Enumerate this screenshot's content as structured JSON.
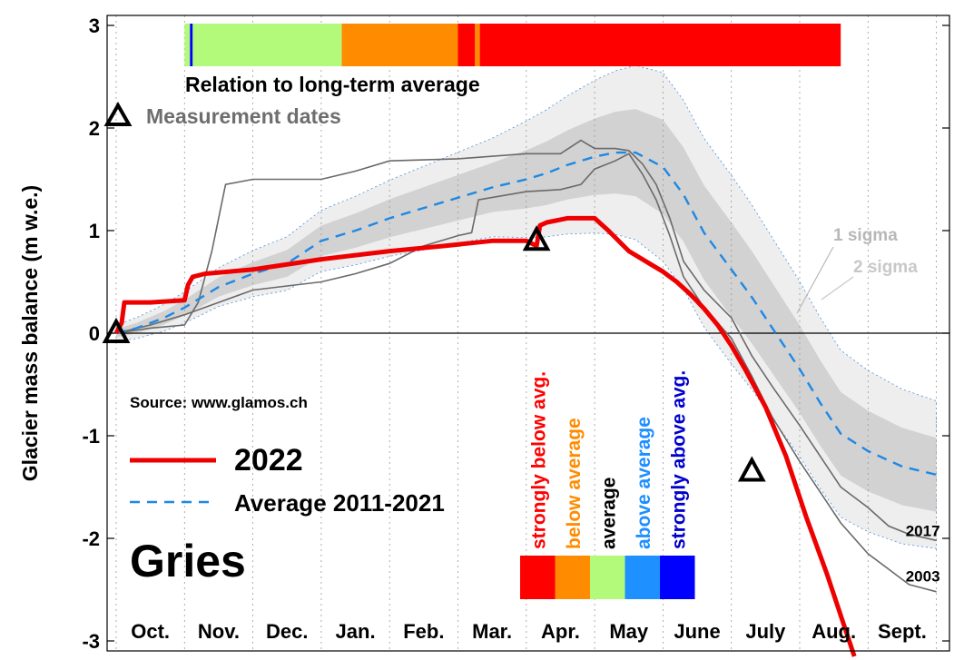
{
  "chart_data": {
    "type": "line",
    "title": "Gries",
    "ylabel": "Glacier mass balance (m w.e.)",
    "xlabel": "",
    "ylim": [
      -3,
      3
    ],
    "yticks": [
      3,
      2,
      1,
      0,
      -1,
      -2,
      -3
    ],
    "months": [
      "Oct.",
      "Nov.",
      "Dec.",
      "Jan.",
      "Feb.",
      "Mar.",
      "Apr.",
      "May",
      "June",
      "July",
      "Aug.",
      "Sept."
    ],
    "grid": "vertical dotted lines at month boundaries",
    "source": "Source: www.glamos.ch",
    "legend": [
      {
        "label": "2022",
        "color": "#ee0000",
        "style": "solid"
      },
      {
        "label": "Average 2011-2021",
        "color": "#1e88e5",
        "style": "dashed"
      }
    ],
    "band_labels": {
      "one_sigma": "1 sigma",
      "two_sigma": "2 sigma"
    },
    "relation_bar_title": "Relation to long-term average",
    "measurement_label": "Measurement dates",
    "relation_bar": [
      {
        "from": 1.0,
        "to": 1.08,
        "cls": "average"
      },
      {
        "from": 1.08,
        "to": 1.12,
        "cls": "strongly above avg."
      },
      {
        "from": 1.12,
        "to": 3.3,
        "cls": "average"
      },
      {
        "from": 3.3,
        "to": 5.0,
        "cls": "below average"
      },
      {
        "from": 5.0,
        "to": 5.25,
        "cls": "strongly below avg."
      },
      {
        "from": 5.25,
        "to": 5.32,
        "cls": "below average"
      },
      {
        "from": 5.32,
        "to": 10.6,
        "cls": "strongly below avg."
      }
    ],
    "categories_legend": [
      {
        "label": "strongly below avg.",
        "color": "#ff0000"
      },
      {
        "label": "below average",
        "color": "#ff8c00"
      },
      {
        "label": "average",
        "color": "#000000",
        "swatch": "#b3f97a"
      },
      {
        "label": "above average",
        "color": "#1e8fff",
        "swatch": "#1e90ff"
      },
      {
        "label": "strongly above avg.",
        "color": "#0000cc",
        "swatch": "#0000ff"
      }
    ],
    "series": [
      {
        "name": "Average 2011-2021",
        "x": [
          0.0,
          0.3,
          0.7,
          1.0,
          1.5,
          2.0,
          2.5,
          3.0,
          3.5,
          4.0,
          4.5,
          5.0,
          5.5,
          6.0,
          6.3,
          6.6,
          7.0,
          7.3,
          7.6,
          8.0,
          8.3,
          8.6,
          9.0,
          9.3,
          9.6,
          10.0,
          10.3,
          10.6,
          11.0,
          11.5,
          12.0
        ],
        "y": [
          0.0,
          0.05,
          0.15,
          0.25,
          0.45,
          0.58,
          0.68,
          0.9,
          1.0,
          1.12,
          1.22,
          1.32,
          1.42,
          1.5,
          1.56,
          1.64,
          1.72,
          1.76,
          1.76,
          1.62,
          1.35,
          0.98,
          0.62,
          0.35,
          0.05,
          -0.35,
          -0.68,
          -0.98,
          -1.15,
          -1.3,
          -1.38
        ]
      },
      {
        "name": "2022",
        "x": [
          0.0,
          0.08,
          0.12,
          0.5,
          1.0,
          1.05,
          1.12,
          1.3,
          2.0,
          3.0,
          4.0,
          4.8,
          5.5,
          6.0,
          6.15,
          6.2,
          6.3,
          6.6,
          7.0,
          7.2,
          7.5,
          7.8,
          8.0,
          8.2,
          8.4,
          8.6,
          8.8,
          9.0,
          9.2,
          9.5,
          9.8,
          10.1,
          10.4,
          10.8
        ],
        "y": [
          0.0,
          0.1,
          0.3,
          0.3,
          0.32,
          0.47,
          0.55,
          0.58,
          0.62,
          0.72,
          0.8,
          0.85,
          0.9,
          0.9,
          0.85,
          1.05,
          1.08,
          1.12,
          1.12,
          1.0,
          0.8,
          0.68,
          0.6,
          0.5,
          0.38,
          0.24,
          0.08,
          -0.12,
          -0.35,
          -0.72,
          -1.2,
          -1.8,
          -2.35,
          -3.15
        ]
      },
      {
        "name": "2017",
        "x": [
          0.0,
          0.5,
          1.0,
          1.2,
          1.4,
          1.6,
          2.0,
          3.0,
          3.5,
          4.0,
          5.0,
          6.0,
          6.5,
          6.8,
          7.0,
          7.3,
          7.5,
          7.7,
          7.9,
          8.1,
          8.3,
          8.6,
          9.0,
          9.3,
          9.6,
          10.0,
          10.3,
          10.6,
          11.0,
          11.3,
          11.6,
          12.0
        ],
        "y": [
          0.0,
          0.05,
          0.08,
          0.3,
          0.8,
          1.45,
          1.5,
          1.5,
          1.58,
          1.68,
          1.7,
          1.75,
          1.75,
          1.88,
          1.8,
          1.8,
          1.78,
          1.65,
          1.45,
          1.12,
          0.7,
          0.42,
          0.15,
          -0.22,
          -0.52,
          -0.9,
          -1.2,
          -1.5,
          -1.7,
          -1.88,
          -1.96,
          -2.02
        ]
      },
      {
        "name": "2003",
        "x": [
          0.0,
          0.5,
          1.0,
          1.5,
          2.0,
          3.0,
          3.5,
          4.0,
          4.5,
          5.0,
          5.2,
          5.3,
          6.0,
          6.5,
          6.8,
          7.0,
          7.3,
          7.5,
          7.7,
          7.9,
          8.1,
          8.3,
          8.6,
          9.0,
          9.3,
          9.6,
          10.0,
          10.3,
          10.6,
          11.0,
          11.3,
          11.6,
          12.0
        ],
        "y": [
          0.0,
          0.08,
          0.18,
          0.3,
          0.42,
          0.5,
          0.58,
          0.68,
          0.85,
          0.95,
          0.98,
          1.3,
          1.38,
          1.4,
          1.45,
          1.6,
          1.68,
          1.75,
          1.55,
          1.3,
          0.95,
          0.55,
          0.25,
          -0.05,
          -0.42,
          -0.82,
          -1.25,
          -1.55,
          -1.85,
          -2.15,
          -2.3,
          -2.45,
          -2.52
        ]
      }
    ],
    "line_labels": [
      {
        "text": "2017",
        "x": 11.55,
        "y": -1.98
      },
      {
        "text": "2003",
        "x": 11.55,
        "y": -2.42
      }
    ],
    "measurements": [
      {
        "x": 0.0,
        "y": 0.0
      },
      {
        "x": 6.15,
        "y": 0.9
      },
      {
        "x": 9.3,
        "y": -1.35
      }
    ]
  }
}
